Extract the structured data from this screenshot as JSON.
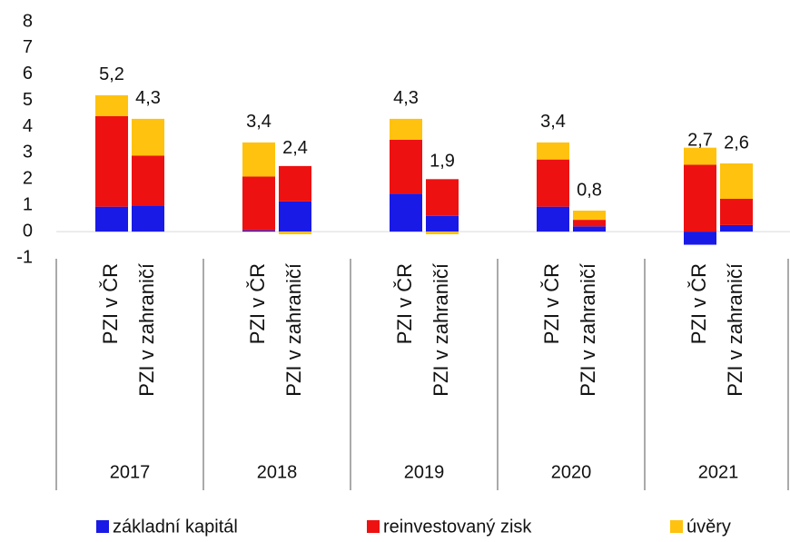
{
  "chart_data": {
    "type": "stacked-bar",
    "categories": [
      "PZI v ČR",
      "PZI v zahraničí",
      "PZI v ČR",
      "PZI v zahraničí",
      "PZI v ČR",
      "PZI v zahraničí",
      "PZI v ČR",
      "PZI v zahraničí",
      "PZI v ČR",
      "PZI v zahraničí"
    ],
    "groups": [
      "2017",
      "2018",
      "2019",
      "2020",
      "2021"
    ],
    "series": [
      {
        "name": "základní kapitál",
        "color": "#1a1ae6",
        "values": [
          0.95,
          1.0,
          0.05,
          1.15,
          1.45,
          0.6,
          0.95,
          0.2,
          -0.5,
          0.25
        ]
      },
      {
        "name": "reinvestovaný zisk",
        "color": "#ee1111",
        "values": [
          3.45,
          1.9,
          2.05,
          1.35,
          2.05,
          1.4,
          1.8,
          0.25,
          2.55,
          1.0
        ]
      },
      {
        "name": "úvěry",
        "color": "#ffc20e",
        "values": [
          0.8,
          1.4,
          1.3,
          -0.1,
          0.8,
          -0.1,
          0.65,
          0.35,
          0.65,
          1.35
        ]
      }
    ],
    "totals": {
      "values": [
        5.2,
        4.3,
        3.4,
        2.4,
        4.3,
        1.9,
        3.4,
        0.8,
        2.7,
        2.6
      ],
      "value_labels": [
        "5,2",
        "4,3",
        "3,4",
        "2,4",
        "4,3",
        "1,9",
        "3,4",
        "0,8",
        "2,7",
        "2,6"
      ]
    },
    "ylim": [
      -1,
      8
    ],
    "yticks": [
      -1,
      0,
      1,
      2,
      3,
      4,
      5,
      6,
      7,
      8
    ],
    "grid": false
  }
}
